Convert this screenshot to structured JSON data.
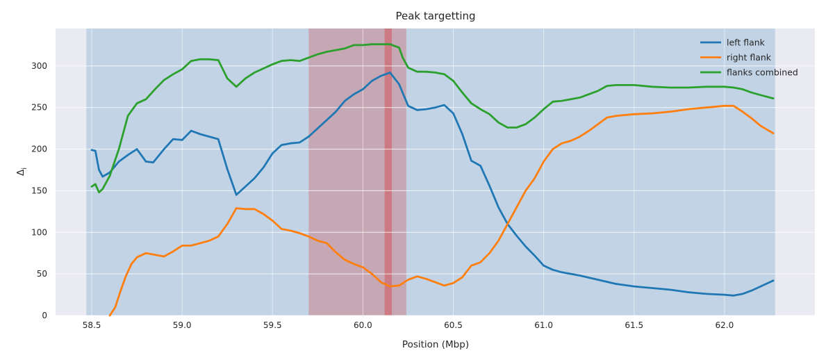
{
  "chart_data": {
    "type": "line",
    "title": "Peak targetting",
    "xlabel": "Position (Mbp)",
    "ylabel": "Δ_i",
    "xlim": [
      58.3,
      62.5
    ],
    "ylim": [
      0,
      345
    ],
    "xticks": [
      58.5,
      59.0,
      59.5,
      60.0,
      60.5,
      61.0,
      61.5,
      62.0
    ],
    "xtick_labels": [
      "58.5",
      "59.0",
      "59.5",
      "60.0",
      "60.5",
      "61.0",
      "61.5",
      "62.0"
    ],
    "yticks": [
      0,
      50,
      100,
      150,
      200,
      250,
      300
    ],
    "ytick_labels": [
      "0",
      "50",
      "100",
      "150",
      "200",
      "250",
      "300"
    ],
    "grid": true,
    "legend_position": "top-right",
    "shaded_regions": [
      {
        "x0": 58.47,
        "x1": 62.28,
        "color": "#1f77b4",
        "opacity": 0.2
      },
      {
        "x0": 59.7,
        "x1": 60.24,
        "color": "#d62728",
        "opacity": 0.25
      },
      {
        "x0": 60.12,
        "x1": 60.16,
        "color": "#d62728",
        "opacity": 0.35
      }
    ],
    "series": [
      {
        "name": "left flank",
        "color": "#1f77b4",
        "points": [
          [
            58.5,
            199
          ],
          [
            58.52,
            198
          ],
          [
            58.54,
            175
          ],
          [
            58.56,
            167
          ],
          [
            58.6,
            172
          ],
          [
            58.65,
            185
          ],
          [
            58.7,
            193
          ],
          [
            58.75,
            200
          ],
          [
            58.8,
            185
          ],
          [
            58.84,
            184
          ],
          [
            58.9,
            200
          ],
          [
            58.95,
            212
          ],
          [
            59.0,
            211
          ],
          [
            59.05,
            222
          ],
          [
            59.1,
            218
          ],
          [
            59.15,
            215
          ],
          [
            59.2,
            212
          ],
          [
            59.25,
            176
          ],
          [
            59.3,
            145
          ],
          [
            59.35,
            155
          ],
          [
            59.4,
            165
          ],
          [
            59.45,
            178
          ],
          [
            59.5,
            195
          ],
          [
            59.55,
            205
          ],
          [
            59.6,
            207
          ],
          [
            59.65,
            208
          ],
          [
            59.7,
            215
          ],
          [
            59.75,
            225
          ],
          [
            59.8,
            235
          ],
          [
            59.85,
            245
          ],
          [
            59.9,
            258
          ],
          [
            59.95,
            266
          ],
          [
            60.0,
            272
          ],
          [
            60.05,
            282
          ],
          [
            60.1,
            288
          ],
          [
            60.15,
            292
          ],
          [
            60.2,
            278
          ],
          [
            60.25,
            252
          ],
          [
            60.3,
            247
          ],
          [
            60.35,
            248
          ],
          [
            60.4,
            250
          ],
          [
            60.45,
            253
          ],
          [
            60.5,
            243
          ],
          [
            60.55,
            218
          ],
          [
            60.6,
            186
          ],
          [
            60.65,
            180
          ],
          [
            60.7,
            156
          ],
          [
            60.75,
            130
          ],
          [
            60.8,
            110
          ],
          [
            60.85,
            96
          ],
          [
            60.9,
            83
          ],
          [
            60.95,
            72
          ],
          [
            61.0,
            60
          ],
          [
            61.05,
            55
          ],
          [
            61.1,
            52
          ],
          [
            61.15,
            50
          ],
          [
            61.2,
            48
          ],
          [
            61.3,
            43
          ],
          [
            61.4,
            38
          ],
          [
            61.5,
            35
          ],
          [
            61.6,
            33
          ],
          [
            61.7,
            31
          ],
          [
            61.8,
            28
          ],
          [
            61.9,
            26
          ],
          [
            62.0,
            25
          ],
          [
            62.05,
            24
          ],
          [
            62.1,
            26
          ],
          [
            62.15,
            30
          ],
          [
            62.2,
            35
          ],
          [
            62.25,
            40
          ],
          [
            62.27,
            42
          ]
        ]
      },
      {
        "name": "right flank",
        "color": "#ff7f0e",
        "points": [
          [
            58.6,
            0
          ],
          [
            58.63,
            10
          ],
          [
            58.66,
            30
          ],
          [
            58.69,
            48
          ],
          [
            58.72,
            62
          ],
          [
            58.75,
            70
          ],
          [
            58.8,
            75
          ],
          [
            58.85,
            73
          ],
          [
            58.9,
            71
          ],
          [
            58.95,
            77
          ],
          [
            59.0,
            84
          ],
          [
            59.05,
            84
          ],
          [
            59.1,
            87
          ],
          [
            59.15,
            90
          ],
          [
            59.2,
            95
          ],
          [
            59.25,
            110
          ],
          [
            59.3,
            129
          ],
          [
            59.35,
            128
          ],
          [
            59.4,
            128
          ],
          [
            59.45,
            122
          ],
          [
            59.5,
            114
          ],
          [
            59.55,
            104
          ],
          [
            59.6,
            102
          ],
          [
            59.65,
            99
          ],
          [
            59.7,
            95
          ],
          [
            59.75,
            90
          ],
          [
            59.8,
            87
          ],
          [
            59.85,
            76
          ],
          [
            59.9,
            67
          ],
          [
            59.95,
            62
          ],
          [
            60.0,
            58
          ],
          [
            60.05,
            50
          ],
          [
            60.1,
            40
          ],
          [
            60.15,
            35
          ],
          [
            60.2,
            36
          ],
          [
            60.25,
            43
          ],
          [
            60.3,
            47
          ],
          [
            60.35,
            44
          ],
          [
            60.4,
            40
          ],
          [
            60.45,
            36
          ],
          [
            60.5,
            39
          ],
          [
            60.55,
            46
          ],
          [
            60.6,
            60
          ],
          [
            60.65,
            64
          ],
          [
            60.7,
            75
          ],
          [
            60.75,
            90
          ],
          [
            60.8,
            110
          ],
          [
            60.85,
            130
          ],
          [
            60.9,
            150
          ],
          [
            60.95,
            165
          ],
          [
            61.0,
            185
          ],
          [
            61.05,
            200
          ],
          [
            61.1,
            207
          ],
          [
            61.15,
            210
          ],
          [
            61.2,
            215
          ],
          [
            61.25,
            222
          ],
          [
            61.3,
            230
          ],
          [
            61.35,
            238
          ],
          [
            61.4,
            240
          ],
          [
            61.5,
            242
          ],
          [
            61.6,
            243
          ],
          [
            61.7,
            245
          ],
          [
            61.8,
            248
          ],
          [
            61.9,
            250
          ],
          [
            62.0,
            252
          ],
          [
            62.05,
            252
          ],
          [
            62.1,
            245
          ],
          [
            62.15,
            237
          ],
          [
            62.2,
            228
          ],
          [
            62.27,
            219
          ]
        ]
      },
      {
        "name": "flanks combined",
        "color": "#2ca02c",
        "points": [
          [
            58.5,
            155
          ],
          [
            58.52,
            158
          ],
          [
            58.54,
            148
          ],
          [
            58.56,
            152
          ],
          [
            58.6,
            168
          ],
          [
            58.65,
            200
          ],
          [
            58.7,
            240
          ],
          [
            58.75,
            255
          ],
          [
            58.8,
            260
          ],
          [
            58.85,
            272
          ],
          [
            58.9,
            283
          ],
          [
            58.95,
            290
          ],
          [
            59.0,
            296
          ],
          [
            59.05,
            306
          ],
          [
            59.1,
            308
          ],
          [
            59.15,
            308
          ],
          [
            59.2,
            307
          ],
          [
            59.25,
            285
          ],
          [
            59.3,
            275
          ],
          [
            59.35,
            285
          ],
          [
            59.4,
            292
          ],
          [
            59.45,
            297
          ],
          [
            59.5,
            302
          ],
          [
            59.55,
            306
          ],
          [
            59.6,
            307
          ],
          [
            59.65,
            306
          ],
          [
            59.7,
            310
          ],
          [
            59.75,
            314
          ],
          [
            59.8,
            317
          ],
          [
            59.85,
            319
          ],
          [
            59.9,
            321
          ],
          [
            59.95,
            325
          ],
          [
            60.0,
            325
          ],
          [
            60.05,
            326
          ],
          [
            60.1,
            326
          ],
          [
            60.15,
            326
          ],
          [
            60.2,
            322
          ],
          [
            60.22,
            310
          ],
          [
            60.25,
            298
          ],
          [
            60.3,
            293
          ],
          [
            60.35,
            293
          ],
          [
            60.4,
            292
          ],
          [
            60.45,
            290
          ],
          [
            60.5,
            282
          ],
          [
            60.55,
            268
          ],
          [
            60.6,
            255
          ],
          [
            60.65,
            248
          ],
          [
            60.7,
            242
          ],
          [
            60.75,
            232
          ],
          [
            60.8,
            226
          ],
          [
            60.85,
            226
          ],
          [
            60.9,
            230
          ],
          [
            60.95,
            238
          ],
          [
            61.0,
            248
          ],
          [
            61.05,
            257
          ],
          [
            61.1,
            258
          ],
          [
            61.15,
            260
          ],
          [
            61.2,
            262
          ],
          [
            61.25,
            266
          ],
          [
            61.3,
            270
          ],
          [
            61.35,
            276
          ],
          [
            61.4,
            277
          ],
          [
            61.5,
            277
          ],
          [
            61.6,
            275
          ],
          [
            61.7,
            274
          ],
          [
            61.8,
            274
          ],
          [
            61.9,
            275
          ],
          [
            62.0,
            275
          ],
          [
            62.05,
            274
          ],
          [
            62.1,
            272
          ],
          [
            62.15,
            268
          ],
          [
            62.2,
            265
          ],
          [
            62.27,
            261
          ]
        ]
      }
    ]
  }
}
